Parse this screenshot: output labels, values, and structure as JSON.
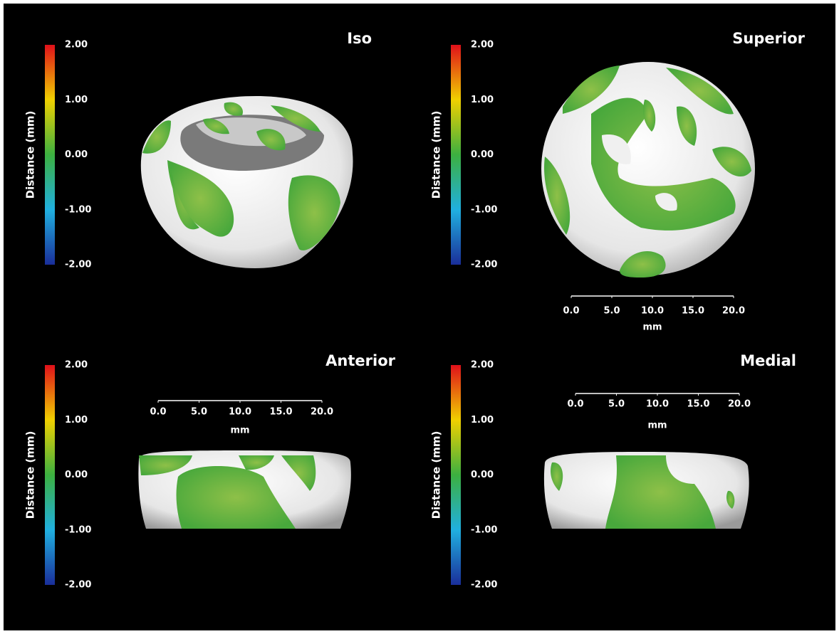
{
  "panels": [
    {
      "title": "Iso",
      "colorbar": {
        "label": "Distance (mm)",
        "lim": [
          -2,
          2
        ],
        "ticks": [
          {
            "value": 2,
            "label": "2.00"
          },
          {
            "value": 1,
            "label": "1.00"
          },
          {
            "value": 0,
            "label": "0.00"
          },
          {
            "value": -1,
            "label": "-1.00"
          },
          {
            "value": -2,
            "label": "-2.00"
          }
        ]
      }
    },
    {
      "title": "Superior",
      "colorbar": {
        "label": "Distance (mm)",
        "lim": [
          -2,
          2
        ],
        "ticks": [
          {
            "value": 2,
            "label": "2.00"
          },
          {
            "value": 1,
            "label": "1.00"
          },
          {
            "value": 0,
            "label": "0.00"
          },
          {
            "value": -1,
            "label": "-1.00"
          },
          {
            "value": -2,
            "label": "-2.00"
          }
        ]
      },
      "scale_bar": {
        "unit": "mm",
        "lim": [
          0,
          20
        ],
        "ticks": [
          {
            "value": 0,
            "label": "0.0"
          },
          {
            "value": 5,
            "label": "5.0"
          },
          {
            "value": 10,
            "label": "10.0"
          },
          {
            "value": 15,
            "label": "15.0"
          },
          {
            "value": 20,
            "label": "20.0"
          }
        ]
      }
    },
    {
      "title": "Anterior",
      "colorbar": {
        "label": "Distance (mm)",
        "lim": [
          -2,
          2
        ],
        "ticks": [
          {
            "value": 2,
            "label": "2.00"
          },
          {
            "value": 1,
            "label": "1.00"
          },
          {
            "value": 0,
            "label": "0.00"
          },
          {
            "value": -1,
            "label": "-1.00"
          },
          {
            "value": -2,
            "label": "-2.00"
          }
        ]
      },
      "scale_bar": {
        "unit": "mm",
        "lim": [
          0,
          20
        ],
        "ticks": [
          {
            "value": 0,
            "label": "0.0"
          },
          {
            "value": 5,
            "label": "5.0"
          },
          {
            "value": 10,
            "label": "10.0"
          },
          {
            "value": 15,
            "label": "15.0"
          },
          {
            "value": 20,
            "label": "20.0"
          }
        ]
      }
    },
    {
      "title": "Medial",
      "colorbar": {
        "label": "Distance (mm)",
        "lim": [
          -2,
          2
        ],
        "ticks": [
          {
            "value": 2,
            "label": "2.00"
          },
          {
            "value": 1,
            "label": "1.00"
          },
          {
            "value": 0,
            "label": "0.00"
          },
          {
            "value": -1,
            "label": "-1.00"
          },
          {
            "value": -2,
            "label": "-2.00"
          }
        ]
      },
      "scale_bar": {
        "unit": "mm",
        "lim": [
          0,
          20
        ],
        "ticks": [
          {
            "value": 0,
            "label": "0.0"
          },
          {
            "value": 5,
            "label": "5.0"
          },
          {
            "value": 10,
            "label": "10.0"
          },
          {
            "value": 15,
            "label": "15.0"
          },
          {
            "value": 20,
            "label": "20.0"
          }
        ]
      }
    }
  ]
}
